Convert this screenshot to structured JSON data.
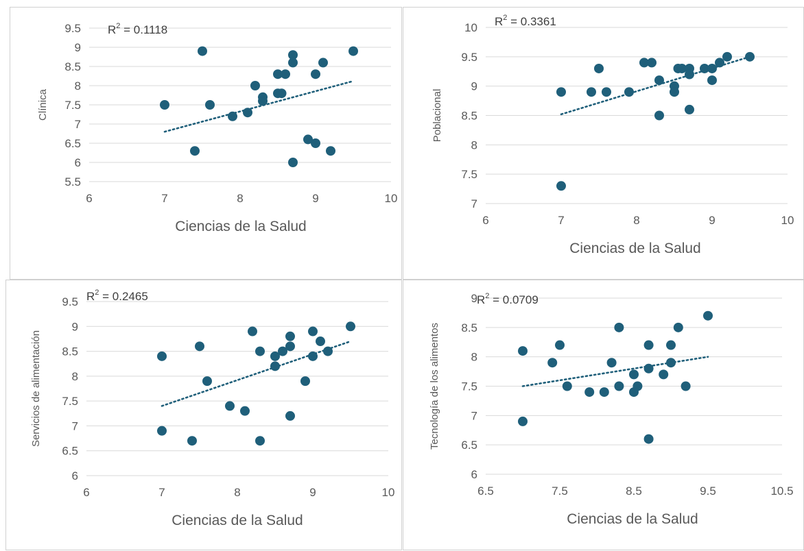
{
  "chart_data": [
    {
      "type": "scatter",
      "title": "",
      "xlabel": "Ciencias de la Salud",
      "ylabel": "Clínica",
      "xlim": [
        6,
        10
      ],
      "ylim": [
        5.5,
        9.5
      ],
      "xticks": [
        "6",
        "7",
        "8",
        "9",
        "10"
      ],
      "yticks": [
        "5.5",
        "6",
        "6.5",
        "7",
        "7.5",
        "8",
        "8.5",
        "9",
        "9.5"
      ],
      "r2_label": "R",
      "r2_exp": "2",
      "r2_value": " = 0.1118",
      "trend": [
        [
          7,
          6.8
        ],
        [
          9.5,
          8.12
        ]
      ],
      "points": [
        [
          7,
          7.5
        ],
        [
          7.4,
          6.3
        ],
        [
          7.5,
          8.9
        ],
        [
          7.6,
          7.5
        ],
        [
          7.9,
          7.2
        ],
        [
          8.1,
          7.3
        ],
        [
          8.2,
          8.0
        ],
        [
          8.3,
          7.7
        ],
        [
          8.3,
          7.6
        ],
        [
          8.5,
          8.3
        ],
        [
          8.5,
          7.8
        ],
        [
          8.55,
          7.8
        ],
        [
          8.6,
          8.3
        ],
        [
          8.7,
          8.8
        ],
        [
          8.7,
          8.6
        ],
        [
          8.7,
          6.0
        ],
        [
          8.9,
          6.6
        ],
        [
          9.0,
          8.3
        ],
        [
          9.0,
          6.5
        ],
        [
          9.1,
          8.6
        ],
        [
          9.2,
          6.3
        ],
        [
          9.5,
          8.9
        ]
      ]
    },
    {
      "type": "scatter",
      "title": "",
      "xlabel": "Ciencias de la Salud",
      "ylabel": "Poblacional",
      "xlim": [
        6,
        10
      ],
      "ylim": [
        7,
        10
      ],
      "xticks": [
        "6",
        "7",
        "8",
        "9",
        "10"
      ],
      "yticks": [
        "7",
        "7.5",
        "8",
        "8.5",
        "9",
        "9.5",
        "10"
      ],
      "r2_label": "R",
      "r2_exp": "2",
      "r2_value": " = 0.3361",
      "trend": [
        [
          7,
          8.52
        ],
        [
          9.5,
          9.5
        ]
      ],
      "points": [
        [
          7,
          8.9
        ],
        [
          7,
          7.3
        ],
        [
          7.4,
          8.9
        ],
        [
          7.5,
          9.3
        ],
        [
          7.6,
          8.9
        ],
        [
          7.9,
          8.9
        ],
        [
          8.1,
          9.4
        ],
        [
          8.2,
          9.4
        ],
        [
          8.3,
          9.1
        ],
        [
          8.3,
          8.5
        ],
        [
          8.5,
          9.0
        ],
        [
          8.5,
          8.9
        ],
        [
          8.55,
          9.3
        ],
        [
          8.6,
          9.3
        ],
        [
          8.7,
          9.3
        ],
        [
          8.7,
          9.2
        ],
        [
          8.7,
          8.6
        ],
        [
          8.9,
          9.3
        ],
        [
          9.0,
          9.3
        ],
        [
          9.0,
          9.1
        ],
        [
          9.1,
          9.4
        ],
        [
          9.2,
          9.5
        ],
        [
          9.5,
          9.5
        ]
      ]
    },
    {
      "type": "scatter",
      "title": "",
      "xlabel": "Ciencias de la Salud",
      "ylabel": "Servicios de alimentación",
      "xlim": [
        6,
        10
      ],
      "ylim": [
        6,
        9.5
      ],
      "xticks": [
        "6",
        "7",
        "8",
        "9",
        "10"
      ],
      "yticks": [
        "6",
        "6.5",
        "7",
        "7.5",
        "8",
        "8.5",
        "9",
        "9.5"
      ],
      "r2_label": "R",
      "r2_exp": "2",
      "r2_value": " = 0.2465",
      "trend": [
        [
          7,
          7.4
        ],
        [
          9.5,
          8.7
        ]
      ],
      "points": [
        [
          7,
          8.4
        ],
        [
          7,
          6.9
        ],
        [
          7.4,
          6.7
        ],
        [
          7.5,
          8.6
        ],
        [
          7.6,
          7.9
        ],
        [
          7.9,
          7.4
        ],
        [
          8.1,
          7.3
        ],
        [
          8.2,
          8.9
        ],
        [
          8.3,
          8.5
        ],
        [
          8.3,
          6.7
        ],
        [
          8.5,
          8.4
        ],
        [
          8.5,
          8.2
        ],
        [
          8.6,
          8.5
        ],
        [
          8.7,
          8.8
        ],
        [
          8.7,
          8.6
        ],
        [
          8.7,
          7.2
        ],
        [
          8.9,
          7.9
        ],
        [
          9.0,
          8.9
        ],
        [
          9.0,
          8.4
        ],
        [
          9.1,
          8.7
        ],
        [
          9.2,
          8.5
        ],
        [
          9.5,
          9.0
        ]
      ]
    },
    {
      "type": "scatter",
      "title": "",
      "xlabel": "Ciencias de la Salud",
      "ylabel": "Tecnología de los alimentos",
      "xlim": [
        6.5,
        10.5
      ],
      "ylim": [
        6,
        9
      ],
      "xticks": [
        "6.5",
        "7.5",
        "8.5",
        "9.5",
        "10.5"
      ],
      "yticks": [
        "6",
        "6.5",
        "7",
        "7.5",
        "8",
        "8.5",
        "9"
      ],
      "r2_label": "R",
      "r2_exp": "2",
      "r2_value": " = 0.0709",
      "trend": [
        [
          7,
          7.5
        ],
        [
          9.5,
          8.0
        ]
      ],
      "points": [
        [
          7,
          8.1
        ],
        [
          7,
          6.9
        ],
        [
          7.4,
          7.9
        ],
        [
          7.5,
          8.2
        ],
        [
          7.6,
          7.5
        ],
        [
          7.9,
          7.4
        ],
        [
          8.1,
          7.4
        ],
        [
          8.2,
          7.9
        ],
        [
          8.3,
          8.5
        ],
        [
          8.3,
          7.5
        ],
        [
          8.5,
          7.7
        ],
        [
          8.5,
          7.4
        ],
        [
          8.55,
          7.5
        ],
        [
          8.7,
          8.2
        ],
        [
          8.7,
          7.8
        ],
        [
          8.7,
          6.6
        ],
        [
          8.9,
          7.7
        ],
        [
          9.0,
          8.2
        ],
        [
          9.0,
          7.9
        ],
        [
          9.1,
          8.5
        ],
        [
          9.2,
          7.5
        ],
        [
          9.5,
          8.7
        ]
      ]
    }
  ]
}
